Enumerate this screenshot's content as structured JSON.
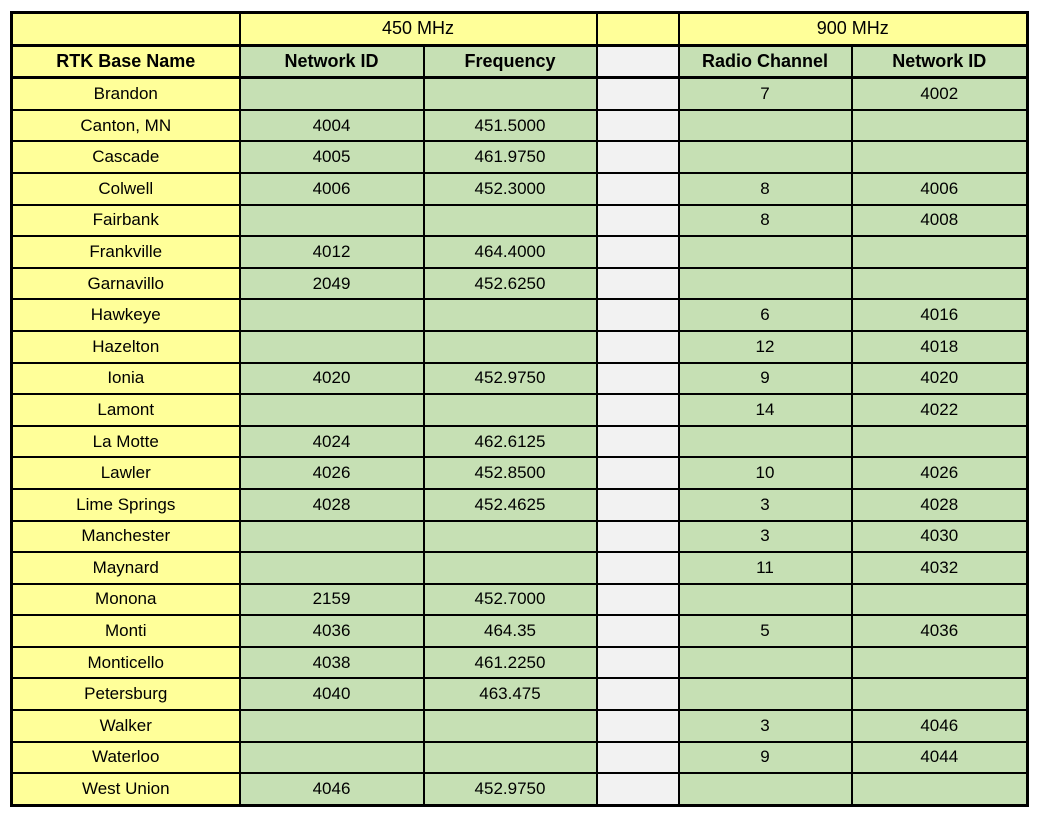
{
  "table": {
    "group_headers": {
      "corner": "",
      "mhz450": "450 MHz",
      "spacer": "",
      "mhz900": "900 MHz"
    },
    "column_headers": {
      "base_name": "RTK Base Name",
      "network_id_450": "Network ID",
      "frequency_450": "Frequency",
      "spacer": "",
      "radio_channel_900": "Radio Channel",
      "network_id_900": "Network ID"
    },
    "rows": [
      {
        "name": "Brandon",
        "nid450": "",
        "freq450": "",
        "chan900": "7",
        "nid900": "4002"
      },
      {
        "name": "Canton, MN",
        "nid450": "4004",
        "freq450": "451.5000",
        "chan900": "",
        "nid900": ""
      },
      {
        "name": "Cascade",
        "nid450": "4005",
        "freq450": "461.9750",
        "chan900": "",
        "nid900": ""
      },
      {
        "name": "Colwell",
        "nid450": "4006",
        "freq450": "452.3000",
        "chan900": "8",
        "nid900": "4006"
      },
      {
        "name": "Fairbank",
        "nid450": "",
        "freq450": "",
        "chan900": "8",
        "nid900": "4008"
      },
      {
        "name": "Frankville",
        "nid450": "4012",
        "freq450": "464.4000",
        "chan900": "",
        "nid900": ""
      },
      {
        "name": "Garnavillo",
        "nid450": "2049",
        "freq450": "452.6250",
        "chan900": "",
        "nid900": ""
      },
      {
        "name": "Hawkeye",
        "nid450": "",
        "freq450": "",
        "chan900": "6",
        "nid900": "4016"
      },
      {
        "name": "Hazelton",
        "nid450": "",
        "freq450": "",
        "chan900": "12",
        "nid900": "4018"
      },
      {
        "name": "Ionia",
        "nid450": "4020",
        "freq450": "452.9750",
        "chan900": "9",
        "nid900": "4020"
      },
      {
        "name": "Lamont",
        "nid450": "",
        "freq450": "",
        "chan900": "14",
        "nid900": "4022"
      },
      {
        "name": "La Motte",
        "nid450": "4024",
        "freq450": "462.6125",
        "chan900": "",
        "nid900": ""
      },
      {
        "name": "Lawler",
        "nid450": "4026",
        "freq450": "452.8500",
        "chan900": "10",
        "nid900": "4026"
      },
      {
        "name": "Lime Springs",
        "nid450": "4028",
        "freq450": "452.4625",
        "chan900": "3",
        "nid900": "4028"
      },
      {
        "name": "Manchester",
        "nid450": "",
        "freq450": "",
        "chan900": "3",
        "nid900": "4030"
      },
      {
        "name": "Maynard",
        "nid450": "",
        "freq450": "",
        "chan900": "11",
        "nid900": "4032"
      },
      {
        "name": "Monona",
        "nid450": "2159",
        "freq450": "452.7000",
        "chan900": "",
        "nid900": ""
      },
      {
        "name": "Monti",
        "nid450": "4036",
        "freq450": "464.35",
        "chan900": "5",
        "nid900": "4036"
      },
      {
        "name": "Monticello",
        "nid450": "4038",
        "freq450": "461.2250",
        "chan900": "",
        "nid900": ""
      },
      {
        "name": "Petersburg",
        "nid450": "4040",
        "freq450": "463.475",
        "chan900": "",
        "nid900": ""
      },
      {
        "name": "Walker",
        "nid450": "",
        "freq450": "",
        "chan900": "3",
        "nid900": "4046"
      },
      {
        "name": "Waterloo",
        "nid450": "",
        "freq450": "",
        "chan900": "9",
        "nid900": "4044"
      },
      {
        "name": "West Union",
        "nid450": "4046",
        "freq450": "452.9750",
        "chan900": "",
        "nid900": ""
      }
    ]
  },
  "colors": {
    "name_column_bg": "#ffff99",
    "data_cell_bg": "#c6e0b4",
    "spacer_bg": "#f2f2f2",
    "border": "#000000",
    "page_bg": "#ffffff"
  }
}
